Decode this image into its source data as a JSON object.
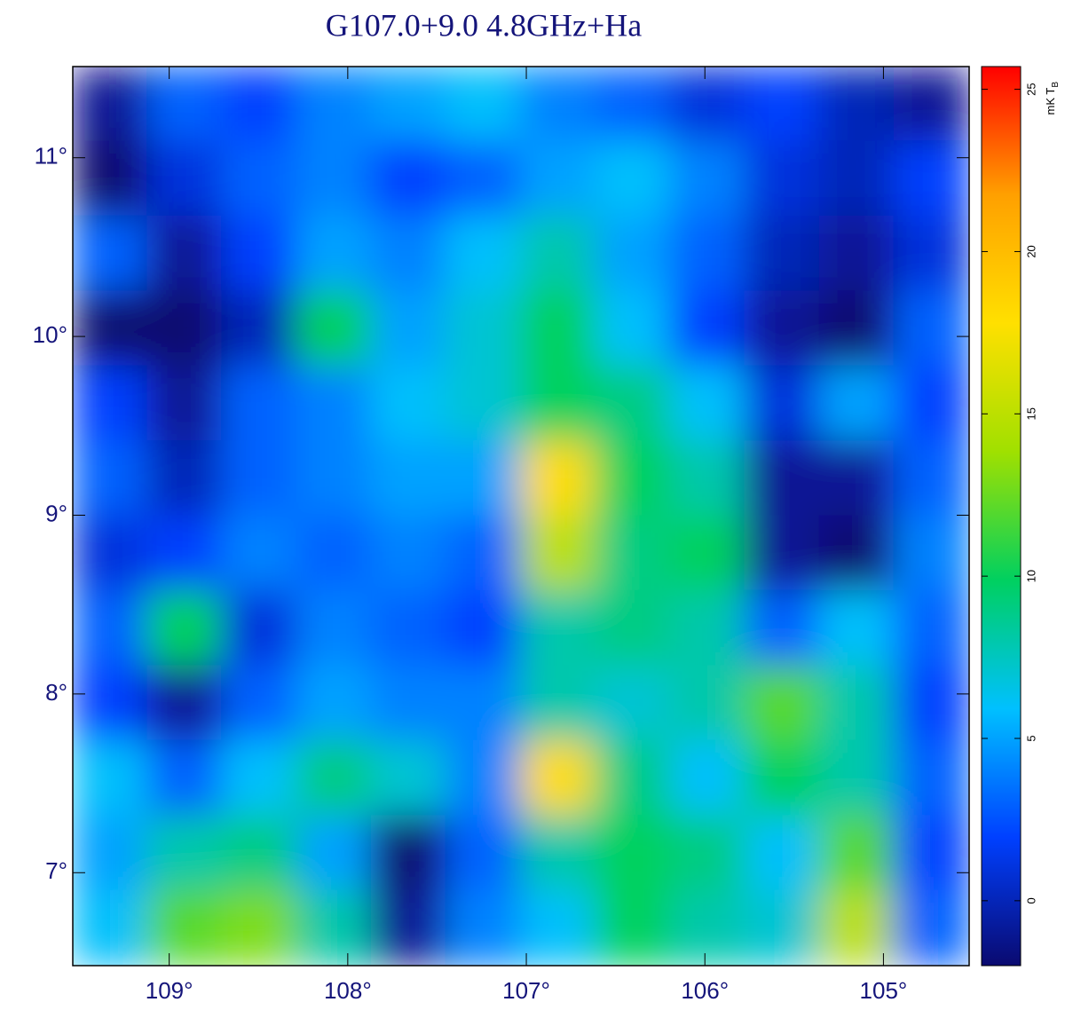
{
  "chart_data": {
    "type": "heatmap",
    "title": "G107.0+9.0  4.8GHz+Ha",
    "xlim": [
      109.54,
      104.52
    ],
    "ylim": [
      6.48,
      11.51
    ],
    "xticks": [
      {
        "value": 109,
        "label": "109°"
      },
      {
        "value": 108,
        "label": "108°"
      },
      {
        "value": 107,
        "label": "107°"
      },
      {
        "value": 106,
        "label": "106°"
      },
      {
        "value": 105,
        "label": "105°"
      }
    ],
    "yticks": [
      {
        "value": 7,
        "label": "7°"
      },
      {
        "value": 8,
        "label": "8°"
      },
      {
        "value": 9,
        "label": "9°"
      },
      {
        "value": 10,
        "label": "10°"
      },
      {
        "value": 11,
        "label": "11°"
      }
    ],
    "zlim": [
      -2,
      25.7
    ],
    "zticks": [
      0,
      5,
      10,
      15,
      20,
      25
    ],
    "colorbar_label": "mK T",
    "colorbar_label_sub": "B",
    "colormap": [
      "#0a0a70",
      "#0040ff",
      "#00c0ff",
      "#00d060",
      "#a0e000",
      "#ffe000",
      "#ffa000",
      "#ff0000"
    ],
    "z": [
      [
        -1,
        3,
        2,
        4,
        5,
        6,
        4,
        3,
        1,
        2,
        0,
        -1
      ],
      [
        -2,
        1,
        3,
        4,
        2,
        3,
        5,
        6,
        4,
        1,
        0,
        2
      ],
      [
        3,
        -1,
        2,
        5,
        4,
        6,
        8,
        5,
        3,
        0,
        -1,
        1
      ],
      [
        -2,
        -2,
        0,
        10,
        5,
        7,
        10,
        6,
        2,
        -1,
        -2,
        3
      ],
      [
        2,
        -1,
        3,
        4,
        6,
        7,
        10,
        9,
        6,
        1,
        5,
        2
      ],
      [
        3,
        0,
        3,
        4,
        5,
        5,
        18,
        10,
        8,
        -1,
        -1,
        3
      ],
      [
        1,
        2,
        4,
        3,
        4,
        3,
        15,
        9,
        10,
        -1,
        -2,
        4
      ],
      [
        3,
        10,
        1,
        4,
        3,
        2,
        8,
        9,
        8,
        3,
        6,
        3
      ],
      [
        2,
        -1,
        3,
        5,
        4,
        4,
        8,
        7,
        8,
        12,
        8,
        2
      ],
      [
        6,
        3,
        6,
        9,
        7,
        4,
        18,
        9,
        6,
        10,
        8,
        3
      ],
      [
        5,
        8,
        9,
        5,
        -2,
        3,
        8,
        10,
        9,
        6,
        12,
        2
      ],
      [
        6,
        12,
        13,
        8,
        -1,
        4,
        6,
        10,
        8,
        7,
        15,
        3
      ]
    ]
  }
}
